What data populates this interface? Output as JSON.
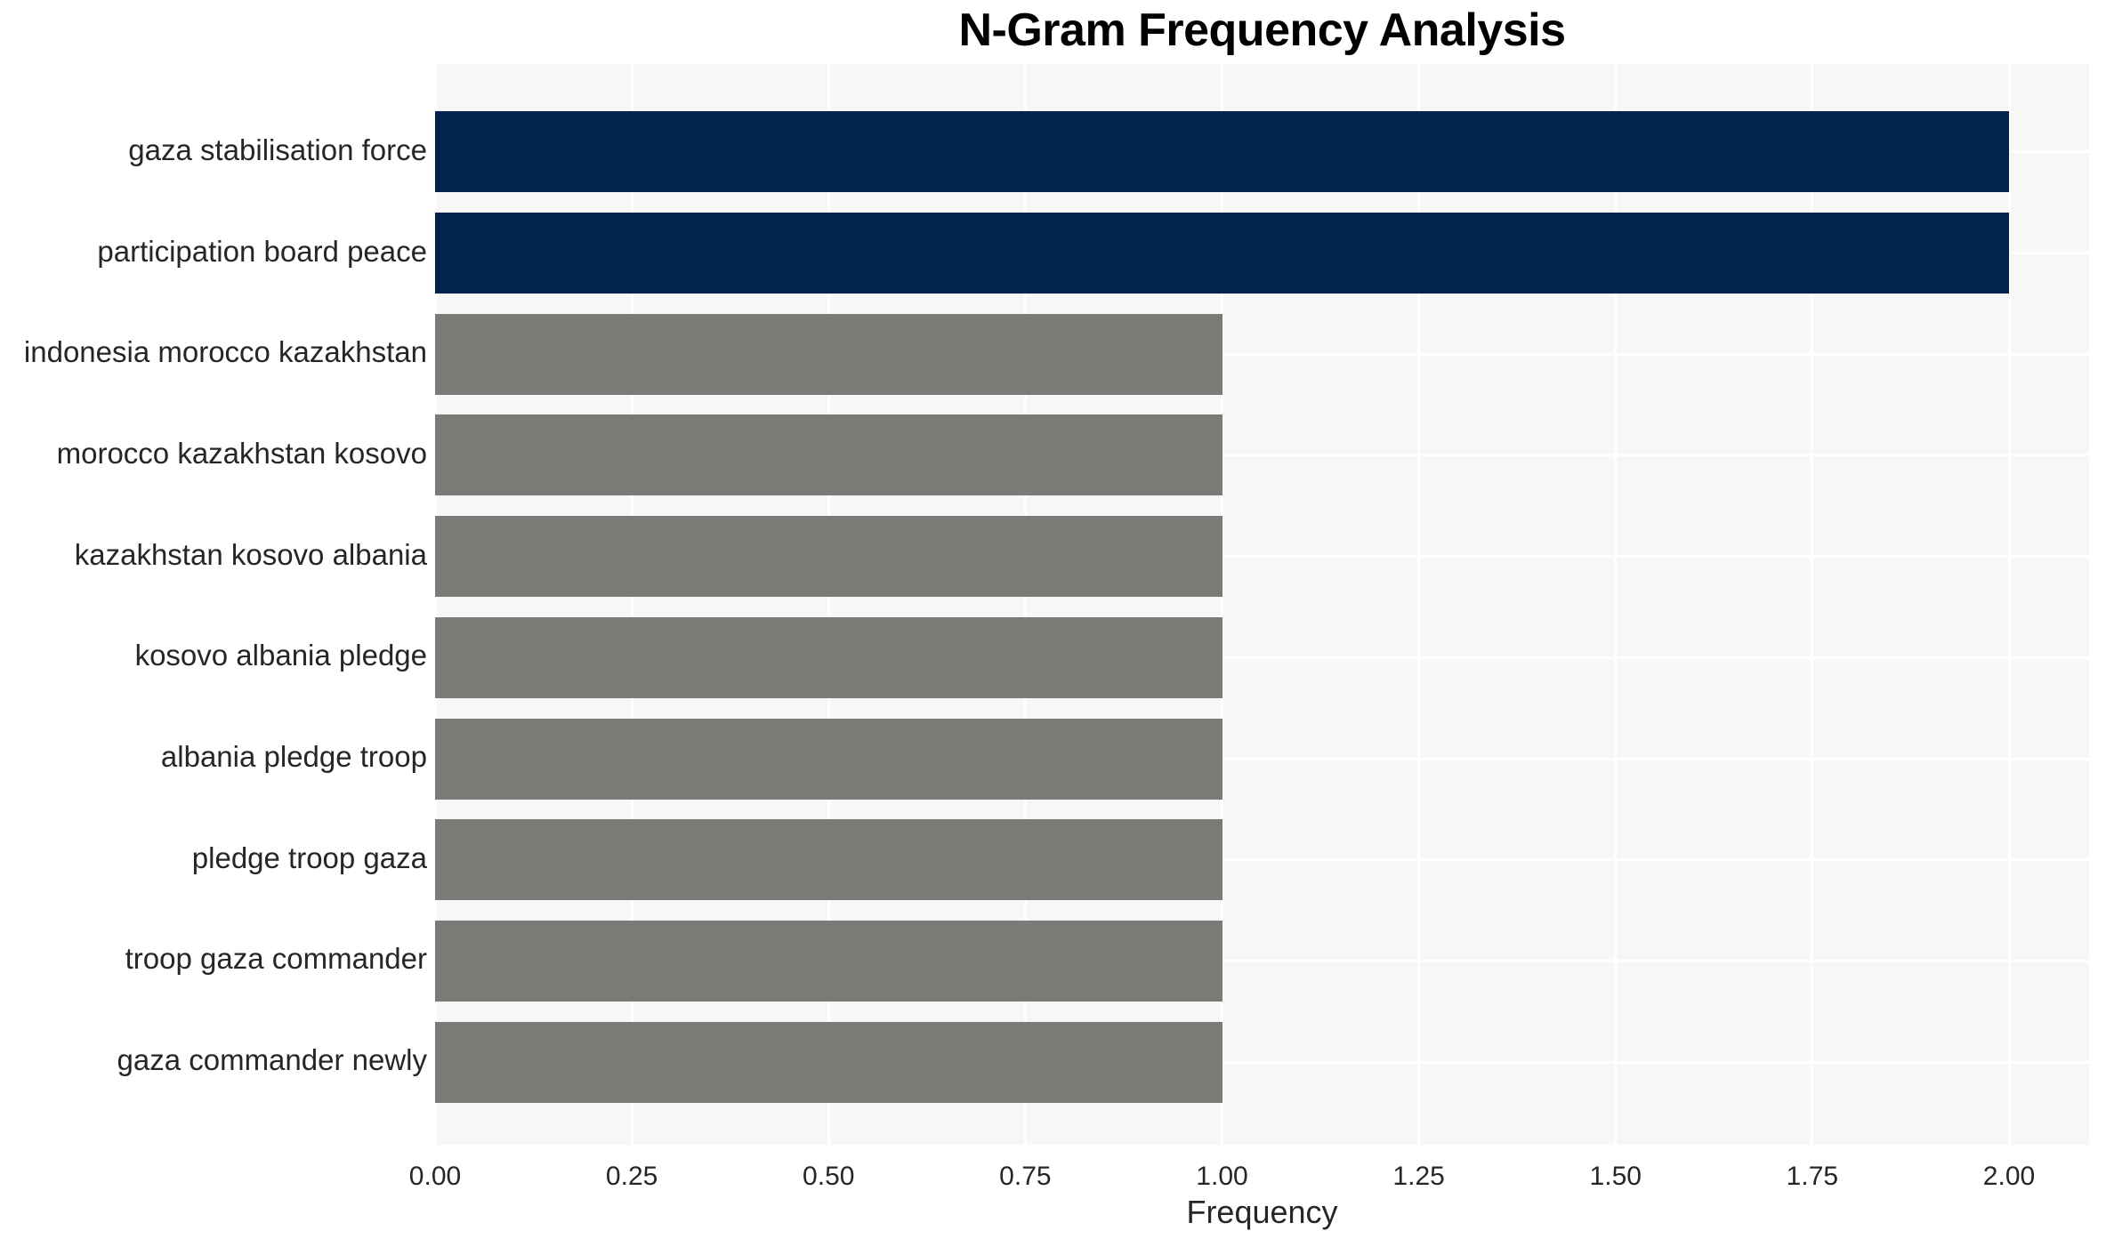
{
  "chart_data": {
    "type": "bar",
    "orientation": "horizontal",
    "title": "N-Gram Frequency Analysis",
    "xlabel": "Frequency",
    "ylabel": "",
    "categories": [
      "gaza stabilisation force",
      "participation board peace",
      "indonesia morocco kazakhstan",
      "morocco kazakhstan kosovo",
      "kazakhstan kosovo albania",
      "kosovo albania pledge",
      "albania pledge troop",
      "pledge troop gaza",
      "troop gaza commander",
      "gaza commander newly"
    ],
    "values": [
      2,
      2,
      1,
      1,
      1,
      1,
      1,
      1,
      1,
      1
    ],
    "bar_colors": [
      "#02234d",
      "#02234d",
      "#7b7a77",
      "#7b7a77",
      "#7b7a77",
      "#7b7a77",
      "#7b7a77",
      "#7b7a77",
      "#7b7a77",
      "#7b7a77"
    ],
    "xlim": [
      0,
      2.1
    ],
    "xticks": [
      0,
      0.25,
      0.5,
      0.75,
      1,
      1.25,
      1.5,
      1.75,
      2
    ],
    "xtick_labels": [
      "0.00",
      "0.25",
      "0.50",
      "0.75",
      "1.00",
      "1.25",
      "1.50",
      "1.75",
      "2.00"
    ],
    "grid": true,
    "legend": "none",
    "colors": {
      "highlight": "#02234d",
      "default": "#7b7a77",
      "plot_background": "#f7f7f7",
      "gridline": "#ffffff",
      "text": "#262626",
      "title_text": "#000000"
    }
  }
}
